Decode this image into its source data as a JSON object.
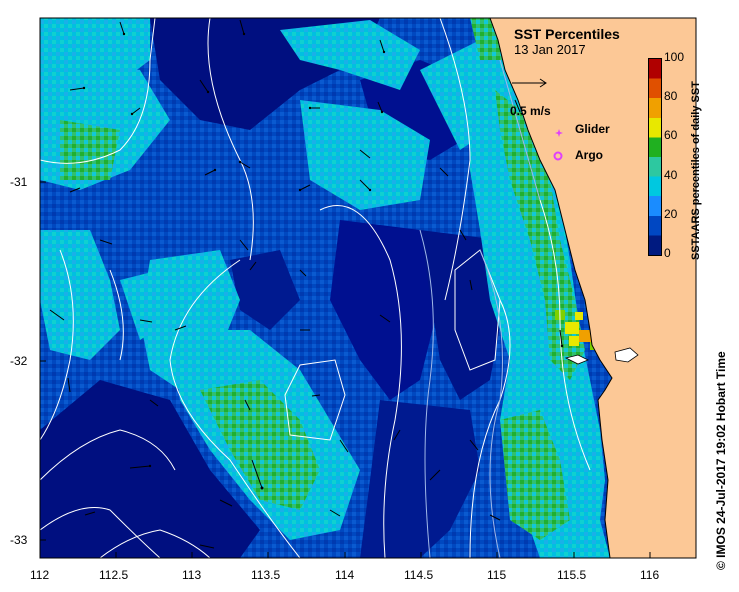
{
  "title": "SST Percentiles",
  "date": "13 Jan 2017",
  "scale_arrow_label": "0.5 m/s",
  "legend": {
    "glider": "Glider",
    "argo": "Argo",
    "glider_color": "#e040fb",
    "argo_color": "#e040fb"
  },
  "colorbar": {
    "label": "SSTAARS percentiles of daily SST",
    "ticks": [
      "0",
      "20",
      "40",
      "60",
      "80",
      "100"
    ],
    "colors": [
      "#001a80",
      "#0047c2",
      "#1a8cff",
      "#00c8e0",
      "#2dc8a0",
      "#20b020",
      "#7fd000",
      "#e8e800",
      "#f0a000",
      "#e05000",
      "#b00000"
    ]
  },
  "credit": "©  IMOS 24-Jul-2017 19:02 Hobart Time",
  "axes": {
    "x_ticks": [
      "112",
      "112.5",
      "113",
      "113.5",
      "114",
      "114.5",
      "115",
      "115.5",
      "116"
    ],
    "y_ticks": [
      "-31",
      "-32",
      "-33"
    ]
  },
  "colors": {
    "deep_blue": "#000f80",
    "blue": "#0050c8",
    "light_blue": "#00c0e0",
    "green": "#30c850",
    "land": "#fcc896"
  }
}
